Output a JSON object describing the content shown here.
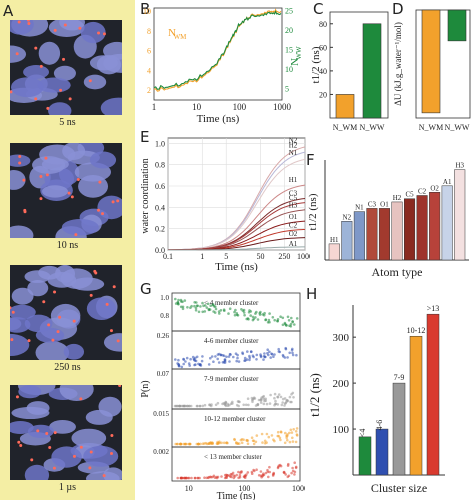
{
  "panels": {
    "A": "A",
    "B": "B",
    "C": "C",
    "D": "D",
    "E": "E",
    "F": "F",
    "G": "G",
    "H": "H"
  },
  "snapshots": [
    {
      "label": "5 ns"
    },
    {
      "label": "10 ns"
    },
    {
      "label": "250 ns"
    },
    {
      "label": "1 µs"
    }
  ],
  "colors": {
    "orange": "#f2a12c",
    "green": "#1e8a3c",
    "blue": "#2f4fb0",
    "gray": "#999999",
    "red": "#d93a2f",
    "yellow": "#f4eea4"
  },
  "chart_data": [
    {
      "id": "B",
      "type": "line",
      "xlabel": "Time (ns)",
      "ylabel_left": "N_WM",
      "ylabel_right": "N_WW",
      "xticks": [
        "1",
        "10",
        "100",
        "1000"
      ],
      "yticks_left": [
        "2",
        "4",
        "6",
        "8",
        "10"
      ],
      "yticks_right": [
        "5",
        "10",
        "15",
        "20",
        "25"
      ],
      "series": [
        {
          "name": "N_WM",
          "x": [
            1,
            3,
            10,
            30,
            60,
            100,
            200,
            500,
            1000
          ],
          "values": [
            2.0,
            2.3,
            3.0,
            4.5,
            6.8,
            8.6,
            9.6,
            9.9,
            10.0
          ]
        },
        {
          "name": "N_WW",
          "x": [
            1,
            3,
            10,
            30,
            60,
            100,
            200,
            500,
            1000
          ],
          "values": [
            5.0,
            5.7,
            7.5,
            11.2,
            17,
            21.5,
            23.6,
            24.2,
            24.3
          ]
        }
      ]
    },
    {
      "id": "C",
      "type": "bar",
      "ylabel": "t1/2 (ns)",
      "yticks": [
        "20",
        "40",
        "60",
        "80"
      ],
      "ylim": [
        0,
        90
      ],
      "categories": [
        "N_WM",
        "N_WW"
      ],
      "values": [
        20,
        80
      ]
    },
    {
      "id": "D",
      "type": "bar",
      "ylabel": "ΔU (kJ.g_water⁻¹/mol)",
      "categories": [
        "N_WM",
        "N_WW"
      ],
      "values": [
        -1.0,
        -0.3
      ],
      "ylim": [
        -1.05,
        0
      ]
    },
    {
      "id": "E",
      "type": "line",
      "xlabel": "Time (ns)",
      "ylabel": "water coordination",
      "xticks": [
        "0.1",
        "1",
        "5",
        "50",
        "250",
        "1000"
      ],
      "yticks": [
        "0.0",
        "0.2",
        "0.4",
        "0.6",
        "0.8",
        "1.0"
      ],
      "series": [
        {
          "name": "N2",
          "final": 1.0
        },
        {
          "name": "H2",
          "final": 0.95
        },
        {
          "name": "N1",
          "final": 0.88
        },
        {
          "name": "H1",
          "final": 0.63
        },
        {
          "name": "C3",
          "final": 0.5
        },
        {
          "name": "C5",
          "final": 0.46
        },
        {
          "name": "H3",
          "final": 0.39
        },
        {
          "name": "O1",
          "final": 0.28
        },
        {
          "name": "C2",
          "final": 0.2
        },
        {
          "name": "O2",
          "final": 0.12
        },
        {
          "name": "A1",
          "final": 0.03
        }
      ]
    },
    {
      "id": "F",
      "type": "bar",
      "xlabel": "Atom type",
      "ylabel": "t1/2 (ns)",
      "categories": [
        "H1",
        "N2",
        "N1",
        "C3",
        "O1",
        "H2",
        "C5",
        "C2",
        "O2",
        "A1",
        "H3"
      ],
      "values": [
        30,
        37,
        40,
        41,
        41,
        43,
        44,
        45,
        46,
        48,
        53
      ]
    },
    {
      "id": "G",
      "type": "scatter",
      "xlabel": "Time (ns)",
      "ylabel": "P(n)",
      "xticks": [
        "10",
        "100",
        "1000"
      ],
      "series": [
        {
          "name": "< 4 member cluster",
          "yticks": [
            "1.0",
            "0.8"
          ]
        },
        {
          "name": "4-6 member cluster",
          "yticks": [
            "0.26"
          ]
        },
        {
          "name": "7-9 member cluster",
          "yticks": [
            "0.07"
          ]
        },
        {
          "name": "10-12 member cluster",
          "yticks": [
            "0.015"
          ]
        },
        {
          "name": "< 13 member cluster",
          "yticks": [
            "0.002"
          ]
        }
      ]
    },
    {
      "id": "H",
      "type": "bar",
      "xlabel": "Cluster size",
      "ylabel": "t1/2 (ns)",
      "yticks": [
        "100",
        "200",
        "300"
      ],
      "ylim": [
        0,
        370
      ],
      "categories": [
        "<4",
        "4-6",
        "7-9",
        "10-12",
        ">13"
      ],
      "values": [
        83,
        100,
        200,
        302,
        350
      ]
    }
  ]
}
